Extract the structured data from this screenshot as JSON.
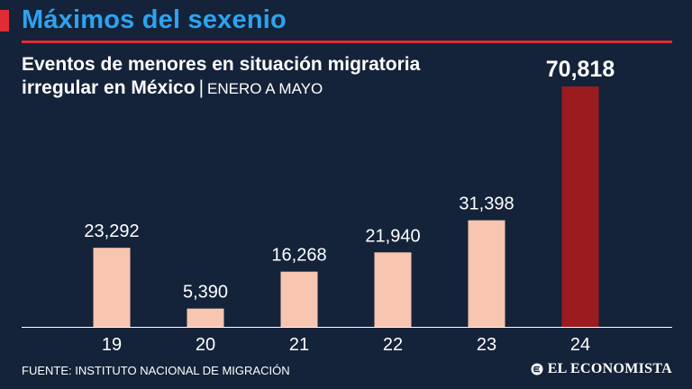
{
  "header": {
    "title": "Máximos del sexenio",
    "accent_color": "#e02c34",
    "title_color": "#2ea3ef"
  },
  "subtitle": {
    "main": "Eventos de menores en situación migratoria irregular en México",
    "separator": "|",
    "period": "ENERO A MAYO"
  },
  "chart_data": {
    "type": "bar",
    "title": "Eventos de menores en situación migratoria irregular en México",
    "categories": [
      "19",
      "20",
      "21",
      "22",
      "23",
      "24"
    ],
    "values": [
      23292,
      5390,
      16268,
      21940,
      31398,
      70818
    ],
    "value_labels": [
      "23,292",
      "5,390",
      "16,268",
      "21,940",
      "31,398",
      "70,818"
    ],
    "highlight_index": 5,
    "bar_color": "#f8c5b0",
    "highlight_color": "#9b1b1f",
    "ylim": [
      0,
      70818
    ],
    "xlabel": "",
    "ylabel": "",
    "grid": false
  },
  "footer": {
    "source": "FUENTE: INSTITUTO NACIONAL DE MIGRACIÓN",
    "brand": "EL ECONOMISTA"
  }
}
